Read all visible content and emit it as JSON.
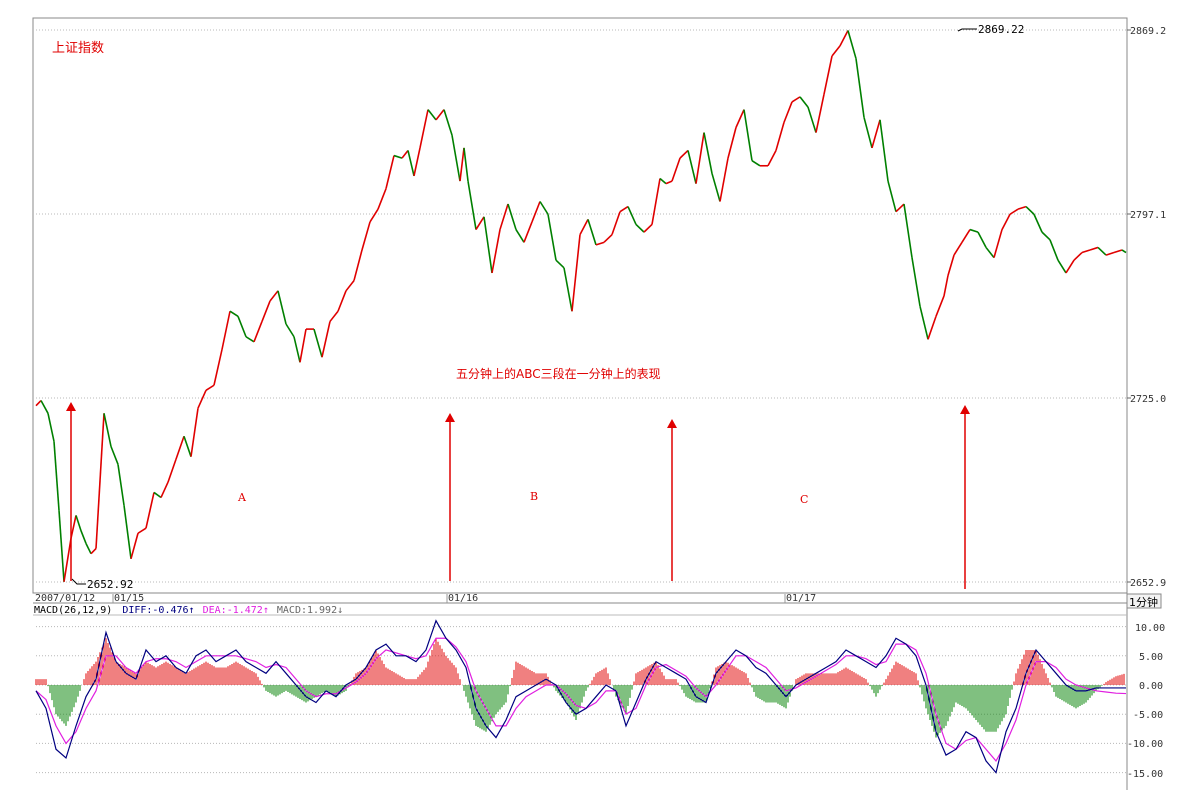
{
  "chart_data": {
    "type": "line",
    "title": "上证指数",
    "annotation": "五分钟上的ABC三段在一分钟上的表现",
    "timeframe_label": "1分钟",
    "date_labels": [
      "2007/01/12",
      "01/15",
      "01/16",
      "01/17"
    ],
    "y_axis": {
      "ticks": [
        "2869.2",
        "2797.1",
        "2725.0",
        "2652.9"
      ],
      "ylim": [
        2652.9,
        2869.2
      ]
    },
    "price_marks": [
      {
        "label": "2652.92",
        "value": 2652.92
      },
      {
        "label": "2869.22",
        "value": 2869.22
      }
    ],
    "segments": [
      "A",
      "B",
      "C"
    ],
    "price_series": {
      "x": [
        0,
        5,
        12,
        18,
        23,
        28,
        35,
        40,
        45,
        50,
        55,
        60,
        68,
        75,
        82,
        88,
        95,
        102,
        110,
        118,
        125,
        132,
        140,
        148,
        155,
        162,
        170,
        178,
        186,
        194,
        202,
        210,
        218,
        226,
        234,
        242,
        250,
        258,
        264,
        270,
        278,
        286,
        294,
        302,
        310,
        318,
        326,
        334,
        342,
        350,
        358,
        366,
        372,
        378,
        384,
        392,
        400,
        408,
        416,
        424,
        428,
        432,
        440,
        448,
        456,
        464,
        472,
        480,
        488,
        496,
        504,
        512,
        520,
        528,
        536,
        544,
        552,
        560,
        568,
        576,
        584,
        592,
        600,
        608,
        616,
        624,
        630,
        636,
        644,
        652,
        660,
        668,
        676,
        684,
        692,
        700,
        708,
        716,
        724,
        732,
        740,
        748,
        756,
        764,
        772,
        780,
        788,
        796,
        804,
        812,
        820,
        828,
        836,
        844,
        852,
        860,
        868,
        876,
        884,
        892,
        900,
        908,
        912,
        918,
        926,
        934,
        942,
        950,
        958,
        966,
        974,
        982,
        990,
        998,
        1006,
        1014,
        1022,
        1030,
        1038,
        1046,
        1054,
        1062,
        1070,
        1078,
        1086,
        1090
      ],
      "values": [
        2722,
        2724,
        2719,
        2708,
        2681,
        2653,
        2670,
        2679,
        2673,
        2668,
        2664,
        2666,
        2719,
        2706,
        2699,
        2683,
        2662,
        2672,
        2674,
        2688,
        2686,
        2692,
        2701,
        2710,
        2702,
        2721,
        2728,
        2730,
        2744,
        2759,
        2757,
        2749,
        2747,
        2755,
        2763,
        2767,
        2754,
        2749,
        2739,
        2752,
        2752,
        2741,
        2755,
        2759,
        2767,
        2771,
        2783,
        2794,
        2799,
        2807,
        2820,
        2819,
        2822,
        2812,
        2823,
        2838,
        2834,
        2838,
        2828,
        2810,
        2823,
        2810,
        2791,
        2796,
        2774,
        2791,
        2801,
        2791,
        2786,
        2794,
        2802,
        2797,
        2779,
        2776,
        2759,
        2789,
        2795,
        2785,
        2786,
        2789,
        2798,
        2800,
        2793,
        2790,
        2793,
        2811,
        2809,
        2810,
        2819,
        2822,
        2809,
        2829,
        2813,
        2802,
        2819,
        2831,
        2838,
        2818,
        2816,
        2816,
        2822,
        2833,
        2841,
        2843,
        2839,
        2829,
        2844,
        2859,
        2863,
        2869,
        2858,
        2835,
        2823,
        2834,
        2810,
        2798,
        2801,
        2780,
        2761,
        2748,
        2757,
        2765,
        2773,
        2781,
        2786,
        2791,
        2790,
        2784,
        2780,
        2791,
        2797,
        2799,
        2800,
        2797,
        2790,
        2787,
        2779,
        2774,
        2779,
        2782,
        2783,
        2784,
        2781,
        2782,
        2783,
        2782
      ]
    },
    "macd": {
      "label": "MACD(26,12,9)",
      "diff_text": "DIFF:-0.476",
      "dea_text": "DEA:-1.472",
      "macd_text": "MACD:1.992",
      "ticks": [
        "10.00",
        "5.00",
        "0.00",
        "-5.00",
        "-10.00",
        "-15.00"
      ],
      "ylim": [
        -16,
        11
      ],
      "x": [
        0,
        10,
        20,
        30,
        40,
        50,
        60,
        70,
        80,
        90,
        100,
        110,
        120,
        130,
        140,
        150,
        160,
        170,
        180,
        190,
        200,
        210,
        220,
        230,
        240,
        250,
        260,
        270,
        280,
        290,
        300,
        310,
        320,
        330,
        340,
        350,
        360,
        370,
        380,
        390,
        400,
        410,
        420,
        430,
        440,
        450,
        460,
        470,
        480,
        490,
        500,
        510,
        520,
        530,
        540,
        550,
        560,
        570,
        580,
        590,
        600,
        610,
        620,
        630,
        640,
        650,
        660,
        670,
        680,
        690,
        700,
        710,
        720,
        730,
        740,
        750,
        760,
        770,
        780,
        790,
        800,
        810,
        820,
        830,
        840,
        850,
        860,
        870,
        880,
        890,
        900,
        910,
        920,
        930,
        940,
        950,
        960,
        970,
        980,
        990,
        1000,
        1010,
        1020,
        1030,
        1040,
        1050,
        1060,
        1070,
        1080,
        1090
      ],
      "diff": [
        -1,
        -4,
        -11,
        -12.5,
        -7,
        -2,
        1,
        9,
        4,
        2,
        1,
        6,
        4,
        5,
        3,
        2,
        5,
        6,
        4,
        5,
        6,
        4,
        3,
        2,
        4,
        2,
        0,
        -2,
        -3,
        -1,
        -2,
        0,
        1,
        3,
        6,
        7,
        5,
        5,
        4,
        6,
        11,
        8,
        6,
        3,
        -4,
        -7,
        -9,
        -6,
        -2,
        -1,
        0,
        1,
        0,
        -3,
        -5,
        -4,
        -2,
        0,
        -1,
        -7,
        -3,
        1,
        4,
        3,
        2,
        1,
        -2,
        -3,
        2,
        4,
        6,
        5,
        3,
        2,
        0,
        -2,
        0,
        1,
        2,
        3,
        4,
        6,
        5,
        4,
        3,
        5,
        8,
        7,
        5,
        0,
        -8,
        -12,
        -11,
        -8,
        -9,
        -13,
        -15,
        -8,
        -4,
        2,
        6,
        4,
        2,
        0,
        -1,
        -1,
        -0.5,
        -0.5,
        -0.5,
        -0.5
      ],
      "dea": [
        -1,
        -2.5,
        -7,
        -10,
        -8,
        -4,
        -1,
        5,
        5,
        3,
        2,
        4,
        4.5,
        4.5,
        4,
        3,
        4,
        5,
        5,
        5,
        5,
        4.5,
        4,
        3,
        3.5,
        3,
        1,
        -1,
        -2,
        -1.5,
        -1.5,
        -0.5,
        0.5,
        2,
        4.5,
        6,
        5.5,
        5,
        4.5,
        5,
        8,
        8,
        6.5,
        4,
        -1,
        -4,
        -7,
        -7,
        -4,
        -2,
        -1,
        0,
        0,
        -1.5,
        -3.5,
        -4,
        -3,
        -1,
        -1,
        -5,
        -4,
        0,
        3,
        3.5,
        2.5,
        1.5,
        -0.5,
        -2,
        0,
        2.5,
        5,
        5,
        4,
        3,
        1,
        -1,
        -0.5,
        0.5,
        1.5,
        2.5,
        3.5,
        5,
        5,
        4.5,
        3.5,
        4,
        7,
        7,
        6,
        2,
        -5,
        -10,
        -11,
        -9.5,
        -9,
        -11,
        -13,
        -10,
        -6,
        0,
        4,
        4,
        3,
        1,
        0,
        -0.5,
        -1,
        -1.2,
        -1.4,
        -1.47
      ],
      "hist": [
        1,
        1,
        -5,
        -7,
        -3,
        2,
        4,
        8,
        4,
        3,
        2,
        4,
        3,
        4,
        3,
        2,
        3,
        4,
        3,
        3,
        4,
        3,
        2,
        -1,
        -2,
        -1,
        -2,
        -3,
        -2,
        -1,
        -2,
        -1,
        2,
        3,
        6,
        3,
        2,
        1,
        1,
        3,
        8,
        5,
        3,
        -2,
        -7,
        -8,
        -5,
        -3,
        4,
        3,
        2,
        2,
        -1,
        -3,
        -6,
        -1,
        2,
        3,
        -2,
        -5,
        2,
        3,
        4,
        1,
        1,
        -2,
        -3,
        -3,
        3,
        4,
        3,
        2,
        -2,
        -3,
        -3,
        -4,
        1,
        2,
        2,
        2,
        2,
        3,
        2,
        1,
        -2,
        1,
        4,
        3,
        2,
        -4,
        -9,
        -7,
        -3,
        -4,
        -6,
        -8,
        -8,
        -5,
        2,
        6,
        6,
        2,
        -2,
        -3,
        -4,
        -3,
        -1,
        0.5,
        1.5,
        2
      ]
    }
  }
}
